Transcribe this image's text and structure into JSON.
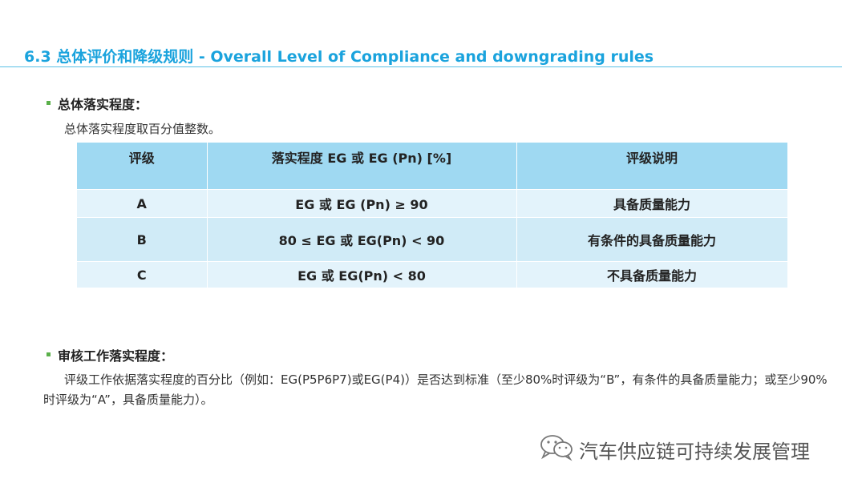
{
  "slide": {
    "title": "6.3 总体评价和降级规则 - Overall Level of Compliance and downgrading rules"
  },
  "section1": {
    "heading": "总体落实程度：",
    "note": "总体落实程度取百分值整数。"
  },
  "table": {
    "headers": [
      "评级",
      "落实程度 EG 或 EG (Pn) [%]",
      "评级说明"
    ],
    "rows": [
      {
        "grade": "A",
        "range": "EG 或 EG (Pn) ≥ 90",
        "desc": "具备质量能力"
      },
      {
        "grade": "B",
        "range": "80 ≤ EG 或 EG(Pn) < 90",
        "desc": "有条件的具备质量能力"
      },
      {
        "grade": "C",
        "range": "EG 或 EG(Pn) < 80",
        "desc": "不具备质量能力"
      }
    ]
  },
  "section2": {
    "heading": "审核工作落实程度：",
    "paragraph": "评级工作依据落实程度的百分比（例如：EG(P5P6P7)或EG(P4)）是否达到标准（至少80%时评级为“B”，有条件的具备质量能力；或至少90%时评级为“A”，具备质量能力）。"
  },
  "watermark": {
    "text": "汽车供应链可持续发展管理",
    "icon": "wechat-icon"
  },
  "colors": {
    "title": "#1aa3dd",
    "table_header": "#9fd9f2",
    "table_row_light": "#e3f3fb",
    "table_row_mid": "#d0ebf7",
    "bullet": "#5ab04a"
  }
}
